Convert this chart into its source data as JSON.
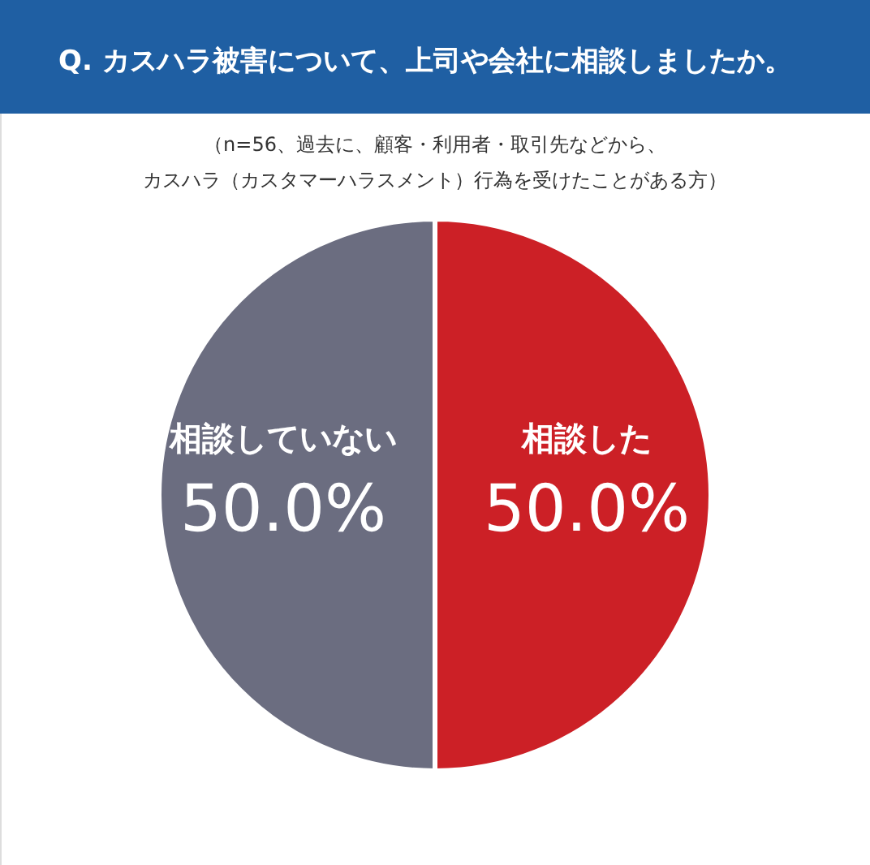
{
  "chart_data": {
    "type": "pie",
    "title": "Q. カスハラ被害について、上司や会社に相談しましたか。",
    "subtitle": "（n=56、過去に、顧客・利用者・取引先などから、カスハラ（カスタマーハラスメント）行為を受けたことがある方）",
    "categories": [
      "相談した",
      "相談していない"
    ],
    "values": [
      50.0,
      50.0
    ],
    "colors": [
      "#cc2026",
      "#6b6d80"
    ],
    "value_labels": [
      "50.0%",
      "50.0%"
    ]
  }
}
